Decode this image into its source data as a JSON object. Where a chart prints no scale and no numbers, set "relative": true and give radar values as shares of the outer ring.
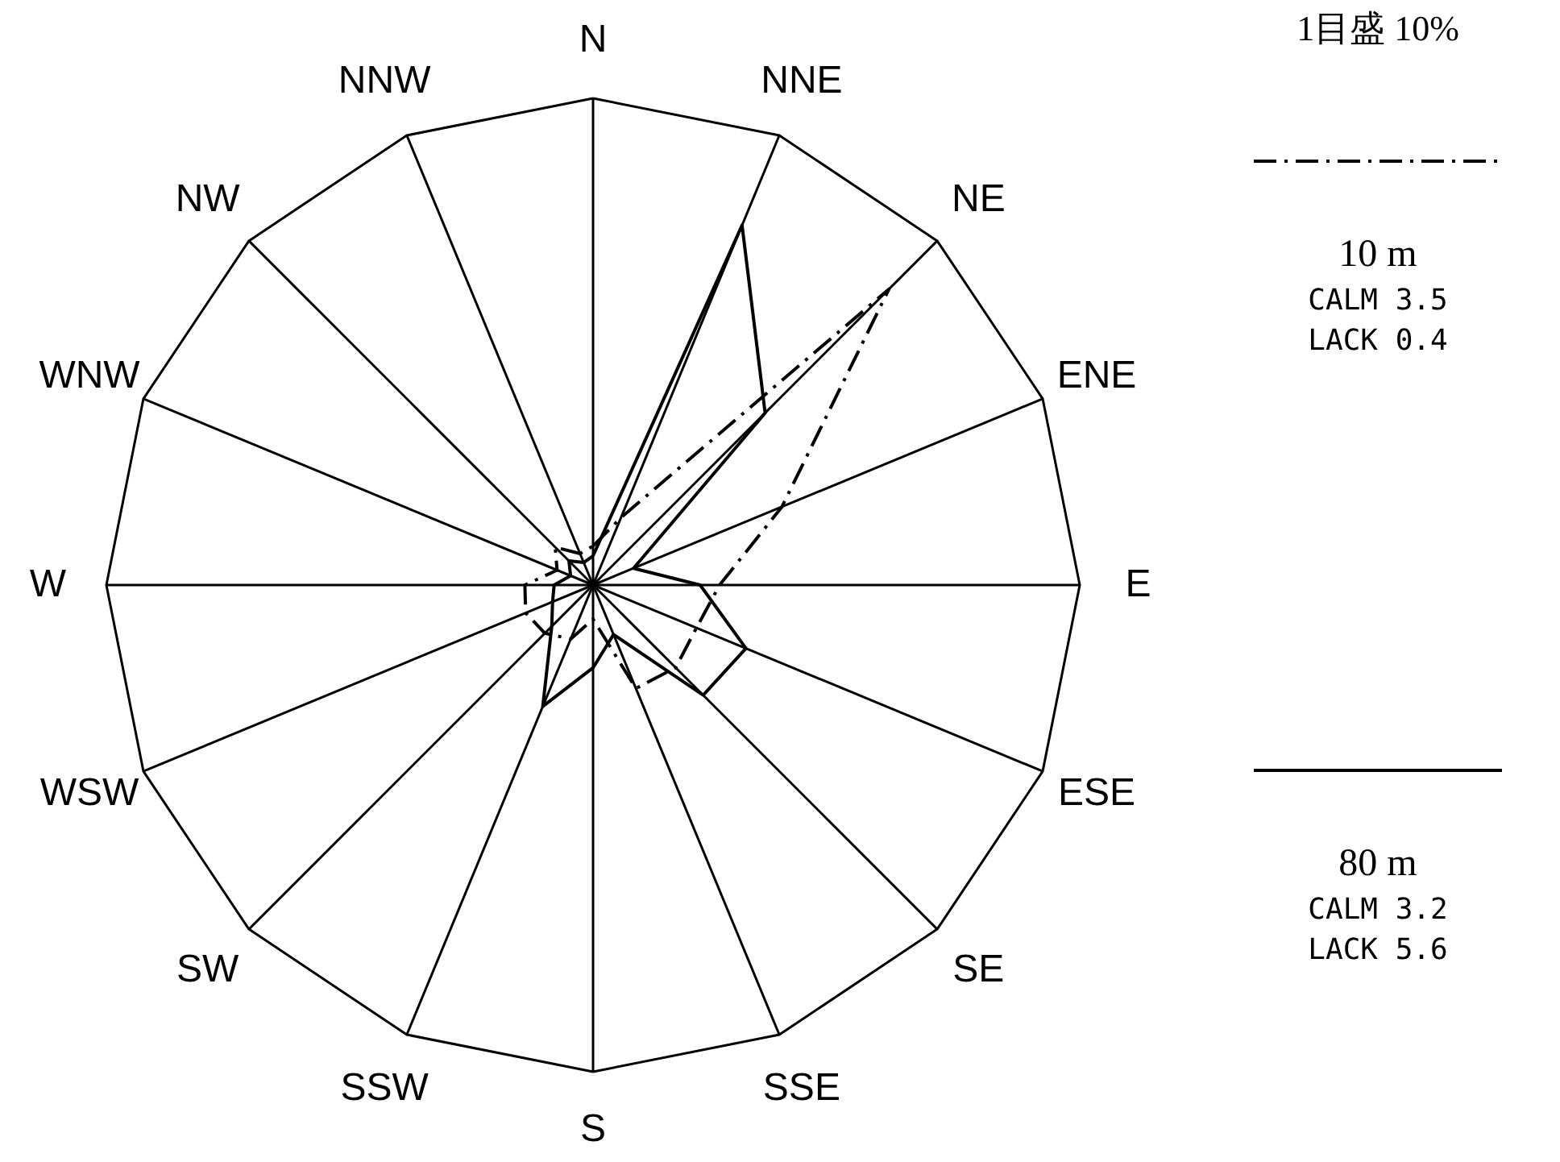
{
  "chart_data": {
    "type": "radar",
    "relative": true,
    "categories": [
      "N",
      "NNE",
      "NE",
      "ENE",
      "E",
      "ESE",
      "SE",
      "SSE",
      "S",
      "SSW",
      "SW",
      "WSW",
      "W",
      "WNW",
      "NW",
      "NNW"
    ],
    "series": [
      {
        "name": "10 m",
        "color": "#000000",
        "line_style": "dashed",
        "values": [
          0.08,
          0.15,
          0.86,
          0.42,
          0.26,
          0.23,
          0.24,
          0.23,
          0.07,
          0.12,
          0.14,
          0.15,
          0.14,
          0.08,
          0.11,
          0.07
        ]
      },
      {
        "name": "80 m",
        "color": "#000000",
        "line_style": "solid",
        "values": [
          0.06,
          0.8,
          0.5,
          0.09,
          0.22,
          0.34,
          0.32,
          0.11,
          0.17,
          0.27,
          0.12,
          0.09,
          0.08,
          0.05,
          0.07,
          0.05
        ]
      }
    ],
    "legend": "right",
    "annotations": [
      "1目盛 10%",
      "CALM 3.5",
      "LACK 0.4",
      "CALM 3.2",
      "LACK 5.6"
    ]
  }
}
